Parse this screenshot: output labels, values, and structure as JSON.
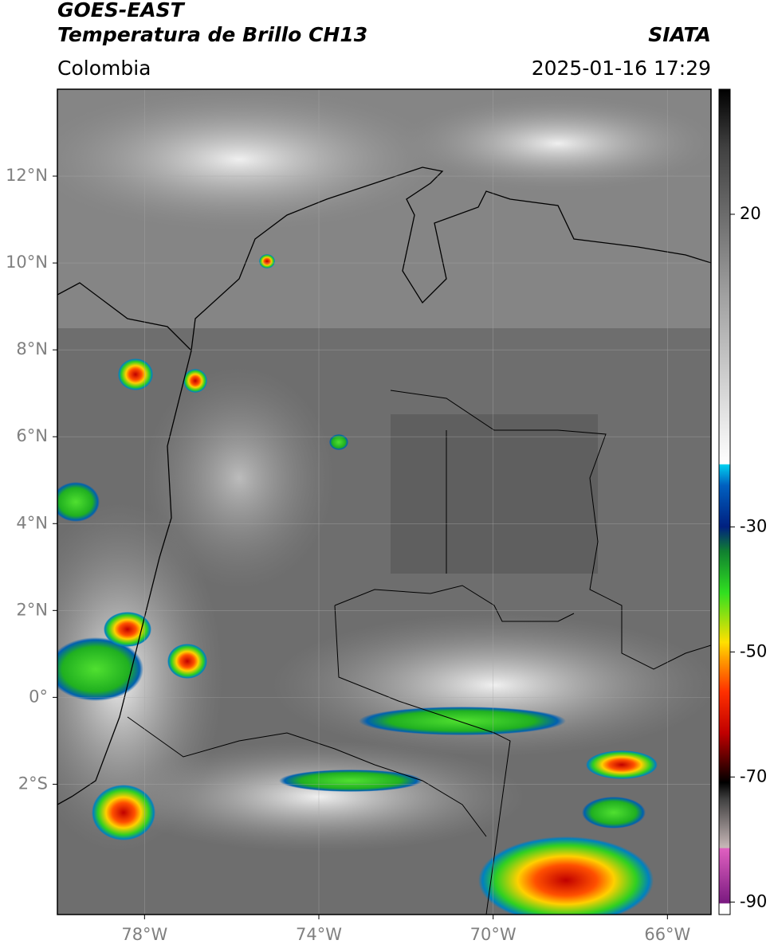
{
  "header": {
    "title": "GOES-EAST",
    "subtitle": "Temperatura de Brillo CH13",
    "source": "SIATA",
    "region": "Colombia",
    "datetime": "2025-01-16 17:29"
  },
  "map": {
    "xlim": [
      -80,
      -65
    ],
    "ylim": [
      -5,
      14
    ],
    "xticks": [
      {
        "value": -78,
        "label": "78°W"
      },
      {
        "value": -74,
        "label": "74°W"
      },
      {
        "value": -70,
        "label": "70°W"
      },
      {
        "value": -66,
        "label": "66°W"
      }
    ],
    "yticks": [
      {
        "value": 12,
        "label": "12°N"
      },
      {
        "value": 10,
        "label": "10°N"
      },
      {
        "value": 8,
        "label": "8°N"
      },
      {
        "value": 6,
        "label": "6°N"
      },
      {
        "value": 4,
        "label": "4°N"
      },
      {
        "value": 2,
        "label": "2°N"
      },
      {
        "value": 0,
        "label": "0°"
      },
      {
        "value": -2,
        "label": "2°S"
      }
    ]
  },
  "colorbar": {
    "lim": [
      -92,
      40
    ],
    "ticks": [
      20,
      -30,
      -50,
      -70,
      -90
    ]
  }
}
